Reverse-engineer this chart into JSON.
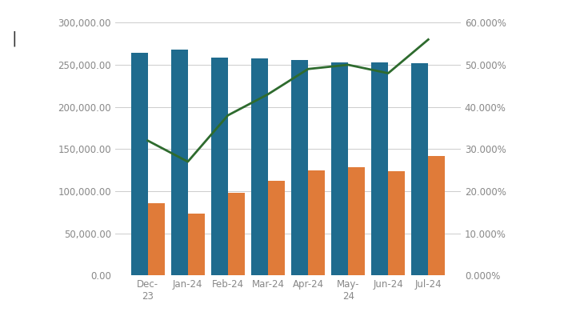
{
  "categories": [
    "Dec-\n23",
    "Jan-24",
    "Feb-24",
    "Mar-24",
    "Apr-24",
    "May-\n24",
    "Jun-24",
    "Jul-24"
  ],
  "blue_bars": [
    264000,
    268000,
    259000,
    258000,
    256000,
    253000,
    253000,
    252000
  ],
  "orange_bars": [
    86000,
    73000,
    98000,
    112000,
    125000,
    128000,
    124000,
    142000
  ],
  "green_line": [
    0.32,
    0.27,
    0.38,
    0.43,
    0.49,
    0.5,
    0.48,
    0.56
  ],
  "blue_color": "#1F6B8E",
  "orange_color": "#E07B39",
  "green_color": "#2E6B2E",
  "left_ylim": [
    0,
    300000
  ],
  "right_ylim": [
    0,
    0.6
  ],
  "left_yticks": [
    0,
    50000,
    100000,
    150000,
    200000,
    250000,
    300000
  ],
  "right_yticks": [
    0.0,
    0.1,
    0.2,
    0.3,
    0.4,
    0.5,
    0.6
  ],
  "background_color": "#ffffff",
  "plot_bg_color": "#ffffff",
  "grid_color": "#cccccc",
  "tick_label_color": "#888888",
  "tick_label_size": 8.5
}
